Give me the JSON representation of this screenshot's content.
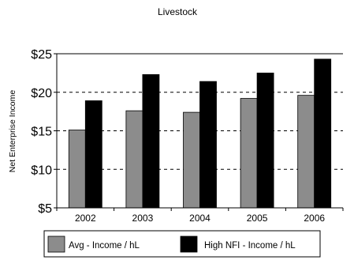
{
  "chart_data": {
    "type": "bar",
    "title": "Livestock",
    "ylabel": "Net Enterprise Income",
    "xlabel": "",
    "categories": [
      "2002",
      "2003",
      "2004",
      "2005",
      "2006"
    ],
    "series": [
      {
        "name": "Avg - Income / hL",
        "values": [
          15.1,
          17.6,
          17.4,
          19.2,
          19.6
        ],
        "color": "#8c8c8c"
      },
      {
        "name": "High NFI - Income / hL",
        "values": [
          18.9,
          22.3,
          21.4,
          22.5,
          24.3
        ],
        "color": "#000000"
      }
    ],
    "ylim": [
      5,
      25
    ],
    "yticks": [
      5,
      10,
      15,
      20,
      25
    ],
    "ytick_labels": [
      "$5",
      "$10",
      "$15",
      "$20",
      "$25"
    ],
    "grid": "dashed horizontal",
    "legend_position": "bottom"
  }
}
